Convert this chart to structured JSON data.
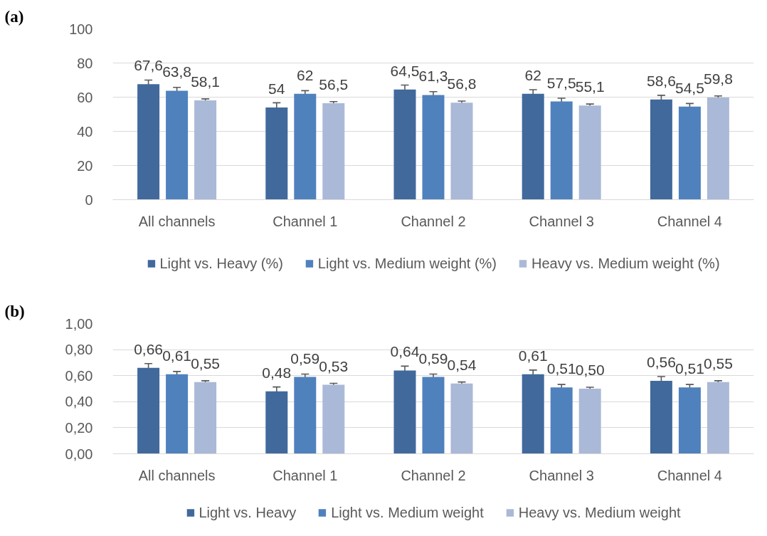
{
  "chart_data": [
    {
      "type": "bar",
      "title": "(a)",
      "categories": [
        "All channels",
        "Channel 1",
        "Channel 2",
        "Channel 3",
        "Channel 4"
      ],
      "series": [
        {
          "name": "Light vs. Heavy (%)",
          "color": "#41699c",
          "values": [
            67.6,
            54,
            64.5,
            62,
            58.6
          ],
          "errors": [
            2.4,
            2.7,
            2.6,
            2.4,
            2.5
          ],
          "value_labels": [
            "67,6",
            "54",
            "64,5",
            "62",
            "58,6"
          ]
        },
        {
          "name": "Light vs. Medium weight (%)",
          "color": "#4f81bd",
          "values": [
            63.8,
            62,
            61.3,
            57.5,
            54.5
          ],
          "errors": [
            1.9,
            1.8,
            1.9,
            1.9,
            1.8
          ],
          "value_labels": [
            "63,8",
            "62",
            "61,3",
            "57,5",
            "54,5"
          ]
        },
        {
          "name": "Heavy vs. Medium weight (%)",
          "color": "#aab9d7",
          "values": [
            58.1,
            56.5,
            56.8,
            55.1,
            59.8
          ],
          "errors": [
            0.9,
            0.9,
            0.9,
            0.9,
            0.9
          ],
          "value_labels": [
            "58,1",
            "56,5",
            "56,8",
            "55,1",
            "59,8"
          ]
        }
      ],
      "ylim": [
        0,
        100
      ],
      "yticks": [
        0,
        20,
        40,
        60,
        80,
        100
      ],
      "grid": "y",
      "legend": "bottom"
    },
    {
      "type": "bar",
      "title": "(b)",
      "categories": [
        "All channels",
        "Channel 1",
        "Channel 2",
        "Channel 3",
        "Channel 4"
      ],
      "series": [
        {
          "name": "Light vs. Heavy",
          "color": "#41699c",
          "values": [
            0.66,
            0.48,
            0.64,
            0.61,
            0.56
          ],
          "errors": [
            0.033,
            0.033,
            0.033,
            0.033,
            0.033
          ],
          "value_labels": [
            "0,66",
            "0,48",
            "0,64",
            "0,61",
            "0,56"
          ]
        },
        {
          "name": "Light vs. Medium weight",
          "color": "#4f81bd",
          "values": [
            0.61,
            0.59,
            0.59,
            0.51,
            0.51
          ],
          "errors": [
            0.022,
            0.022,
            0.022,
            0.022,
            0.022
          ],
          "value_labels": [
            "0,61",
            "0,59",
            "0,59",
            "0,51",
            "0,51"
          ]
        },
        {
          "name": "Heavy vs. Medium weight",
          "color": "#aab9d7",
          "values": [
            0.55,
            0.53,
            0.54,
            0.5,
            0.55
          ],
          "errors": [
            0.011,
            0.011,
            0.011,
            0.011,
            0.011
          ],
          "value_labels": [
            "0,55",
            "0,53",
            "0,54",
            "0,50",
            "0,55"
          ]
        }
      ],
      "ylim": [
        0,
        1
      ],
      "yticks": [
        {
          "value": 0,
          "label": "0,00"
        },
        {
          "value": 0.2,
          "label": "0,20"
        },
        {
          "value": 0.4,
          "label": "0,40"
        },
        {
          "value": 0.6,
          "label": "0,60"
        },
        {
          "value": 0.8,
          "label": "0,80"
        },
        {
          "value": 1,
          "label": "1,00"
        }
      ],
      "grid": "y",
      "legend": "bottom"
    }
  ]
}
